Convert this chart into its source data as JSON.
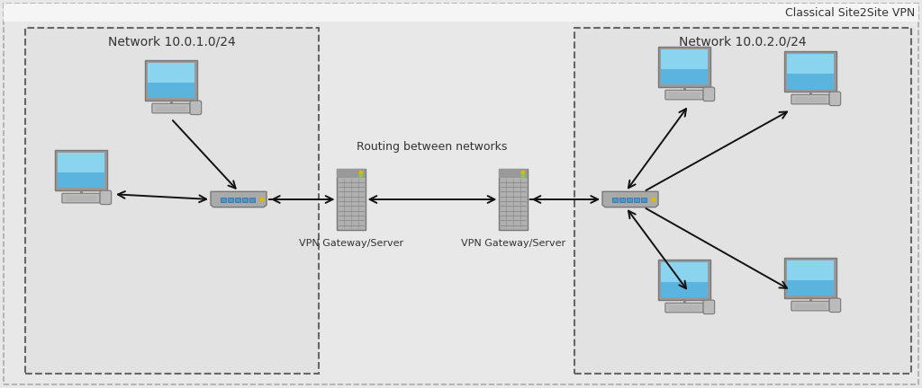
{
  "title": "Classical Site2Site VPN",
  "network1_label": "Network 10.0.1.0/24",
  "network2_label": "Network 10.0.2.0/24",
  "routing_label": "Routing between networks",
  "vpn_label1": "VPN Gateway/Server",
  "vpn_label2": "VPN Gateway/Server",
  "bg_outer": "#e8e8e8",
  "bg_inner": "#f0f0f0",
  "box_fill": "#e2e2e2",
  "dashed_color": "#666666",
  "outer_border": "#aaaaaa",
  "text_color": "#333333",
  "arrow_color": "#111111",
  "monitor_screen": "#5ab4de",
  "monitor_screen_inner": "#8ad4f0",
  "monitor_base": "#888888",
  "monitor_kbd": "#aaaaaa",
  "switch_body": "#999999",
  "switch_port": "#4499cc",
  "switch_yellow": "#ddbb00",
  "server_body": "#aaaaaa",
  "server_detail": "#888888",
  "server_light1": "#ddbb00",
  "server_light2": "#88cc44",
  "title_fontsize": 9,
  "network_label_fontsize": 10,
  "routing_fontsize": 9,
  "vpn_label_fontsize": 8
}
